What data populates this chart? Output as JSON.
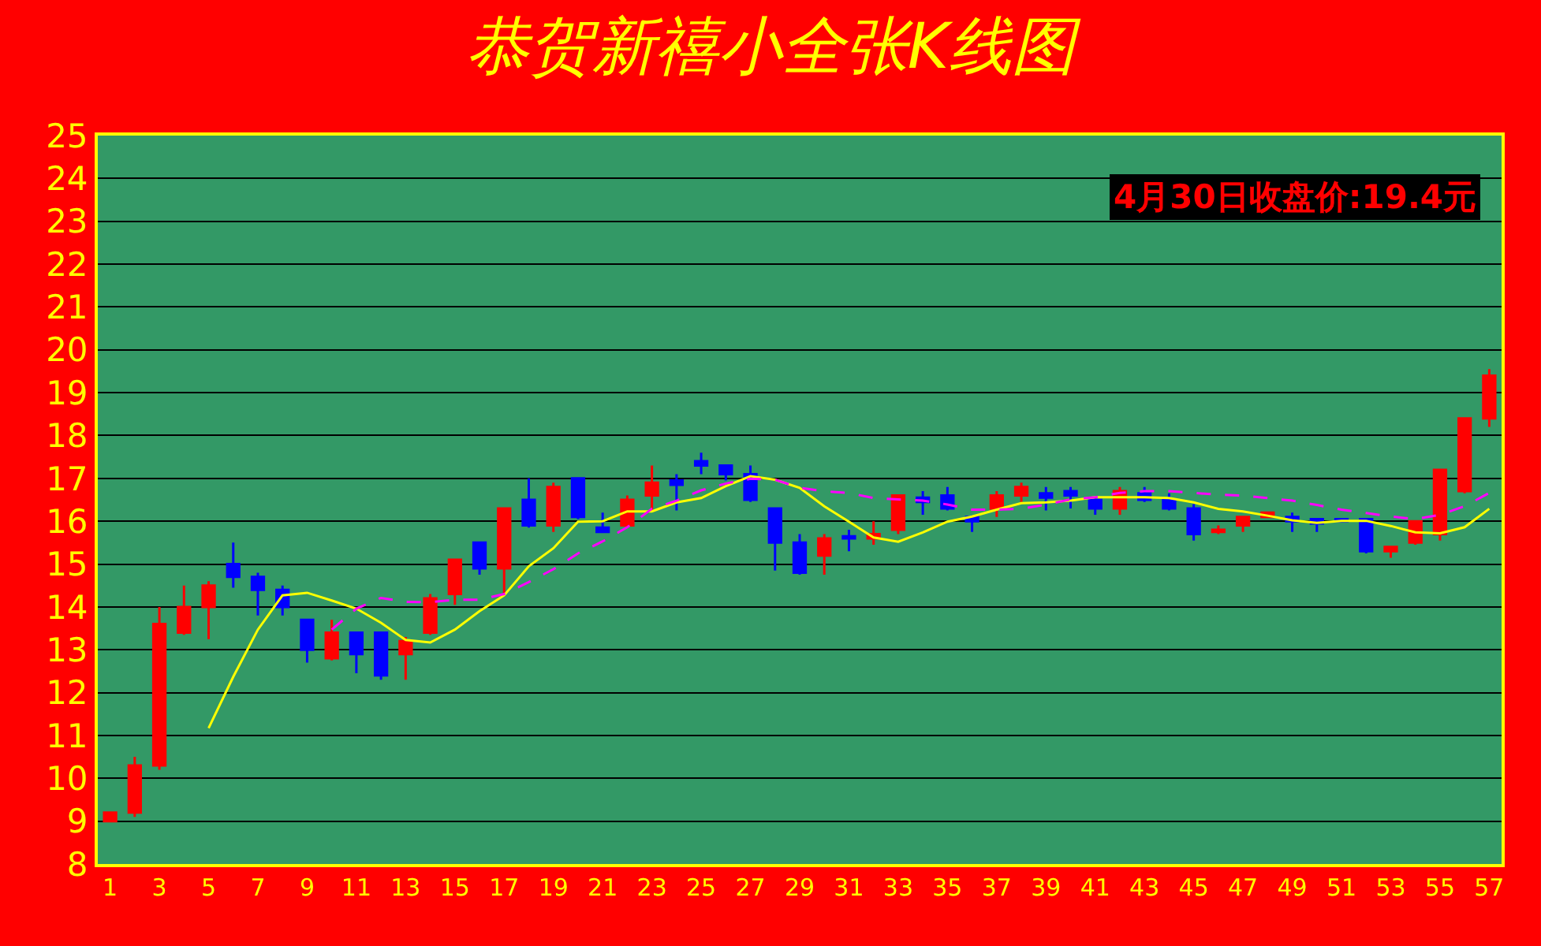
{
  "chart_data": {
    "type": "candlestick",
    "title": "恭贺新禧小全张K线图",
    "x": [
      1,
      2,
      3,
      4,
      5,
      6,
      7,
      8,
      9,
      10,
      11,
      12,
      13,
      14,
      15,
      16,
      17,
      18,
      19,
      20,
      21,
      22,
      23,
      24,
      25,
      26,
      27,
      28,
      29,
      30,
      31,
      32,
      33,
      34,
      35,
      36,
      37,
      38,
      39,
      40,
      41,
      42,
      43,
      44,
      45,
      46,
      47,
      48,
      49,
      50,
      51,
      52,
      53,
      54,
      55,
      56,
      57
    ],
    "ohlc": [
      [
        9.0,
        9.2,
        9.0,
        9.2
      ],
      [
        9.2,
        10.5,
        9.1,
        10.3
      ],
      [
        10.3,
        14.0,
        10.2,
        13.6
      ],
      [
        13.4,
        14.5,
        13.35,
        14.0
      ],
      [
        14.0,
        14.6,
        13.25,
        14.5
      ],
      [
        15.0,
        15.5,
        14.45,
        14.7
      ],
      [
        14.7,
        14.8,
        13.8,
        14.4
      ],
      [
        14.4,
        14.5,
        13.8,
        14.0
      ],
      [
        13.7,
        13.7,
        12.7,
        13.0
      ],
      [
        12.8,
        13.7,
        12.75,
        13.4
      ],
      [
        13.4,
        13.4,
        12.45,
        12.9
      ],
      [
        13.4,
        13.4,
        12.3,
        12.4
      ],
      [
        12.9,
        13.3,
        12.3,
        13.2
      ],
      [
        13.4,
        14.3,
        13.35,
        14.2
      ],
      [
        14.3,
        15.1,
        14.05,
        15.1
      ],
      [
        15.5,
        15.5,
        14.75,
        14.9
      ],
      [
        14.9,
        16.3,
        14.25,
        16.3
      ],
      [
        16.5,
        17.0,
        15.85,
        15.9
      ],
      [
        15.9,
        16.9,
        15.75,
        16.8
      ],
      [
        17.0,
        17.0,
        16.05,
        16.1
      ],
      [
        15.85,
        16.2,
        15.75,
        15.75
      ],
      [
        15.9,
        16.6,
        15.85,
        16.5
      ],
      [
        16.6,
        17.3,
        16.25,
        16.9
      ],
      [
        16.95,
        17.1,
        16.25,
        16.85
      ],
      [
        17.4,
        17.6,
        17.1,
        17.3
      ],
      [
        17.3,
        17.3,
        16.95,
        17.1
      ],
      [
        17.1,
        17.3,
        16.45,
        16.5
      ],
      [
        16.3,
        16.3,
        14.85,
        15.5
      ],
      [
        15.5,
        15.7,
        14.75,
        14.8
      ],
      [
        15.2,
        15.7,
        14.75,
        15.6
      ],
      [
        15.65,
        15.8,
        15.3,
        15.6
      ],
      [
        15.6,
        16.0,
        15.45,
        15.7
      ],
      [
        15.8,
        16.6,
        15.7,
        16.6
      ],
      [
        16.55,
        16.7,
        16.15,
        16.45
      ],
      [
        16.6,
        16.8,
        16.25,
        16.3
      ],
      [
        16.1,
        16.1,
        15.75,
        16.0
      ],
      [
        16.3,
        16.7,
        16.1,
        16.6
      ],
      [
        16.6,
        16.9,
        16.45,
        16.8
      ],
      [
        16.65,
        16.8,
        16.25,
        16.55
      ],
      [
        16.7,
        16.8,
        16.3,
        16.6
      ],
      [
        16.5,
        16.55,
        16.15,
        16.3
      ],
      [
        16.3,
        16.8,
        16.15,
        16.7
      ],
      [
        16.65,
        16.8,
        16.45,
        16.5
      ],
      [
        16.5,
        16.65,
        16.25,
        16.3
      ],
      [
        16.3,
        16.4,
        15.55,
        15.7
      ],
      [
        15.75,
        15.9,
        15.7,
        15.8
      ],
      [
        15.9,
        16.1,
        15.75,
        16.1
      ],
      [
        16.1,
        16.2,
        16.1,
        16.2
      ],
      [
        16.1,
        16.2,
        15.75,
        16.0
      ],
      [
        16.05,
        16.05,
        15.75,
        15.95
      ],
      [
        16.05,
        16.05,
        16.0,
        16.0
      ],
      [
        16.05,
        16.05,
        15.25,
        15.3
      ],
      [
        15.3,
        15.4,
        15.15,
        15.4
      ],
      [
        15.5,
        16.0,
        15.45,
        16.0
      ],
      [
        15.7,
        17.2,
        15.55,
        17.2
      ],
      [
        16.7,
        18.4,
        16.65,
        18.4
      ],
      [
        18.4,
        19.55,
        18.2,
        19.4
      ]
    ],
    "colors": [
      "#ff0000",
      "#ff0000",
      "#ff0000",
      "#ff0000",
      "#ff0000",
      "#0000ff",
      "#0000ff",
      "#0000ff",
      "#0000ff",
      "#ff0000",
      "#0000ff",
      "#0000ff",
      "#ff0000",
      "#ff0000",
      "#ff0000",
      "#0000ff",
      "#ff0000",
      "#0000ff",
      "#ff0000",
      "#0000ff",
      "#0000ff",
      "#ff0000",
      "#ff0000",
      "#0000ff",
      "#0000ff",
      "#0000ff",
      "#0000ff",
      "#0000ff",
      "#0000ff",
      "#ff0000",
      "#0000ff",
      "#ff0000",
      "#ff0000",
      "#0000ff",
      "#0000ff",
      "#0000ff",
      "#ff0000",
      "#ff0000",
      "#0000ff",
      "#0000ff",
      "#0000ff",
      "#ff0000",
      "#0000ff",
      "#0000ff",
      "#0000ff",
      "#ff0000",
      "#ff0000",
      "#ff0000",
      "#0000ff",
      "#0000ff",
      "#0000ff",
      "#0000ff",
      "#ff0000",
      "#ff0000",
      "#ff0000",
      "#ff0000",
      "#ff0000"
    ],
    "series": [
      {
        "type": "line",
        "color": "#ffff00",
        "line_style": "solid",
        "x": [
          5,
          6,
          7,
          8,
          9,
          10,
          11,
          12,
          13,
          14,
          15,
          16,
          17,
          18,
          19,
          20,
          21,
          22,
          23,
          24,
          25,
          26,
          27,
          28,
          29,
          30,
          31,
          32,
          33,
          34,
          35,
          36,
          37,
          38,
          39,
          40,
          41,
          42,
          43,
          44,
          45,
          46,
          47,
          48,
          49,
          50,
          51,
          52,
          53,
          54,
          55,
          56,
          57
        ],
        "values": [
          11.17,
          12.37,
          13.47,
          14.27,
          14.33,
          14.15,
          13.96,
          13.63,
          13.23,
          13.17,
          13.47,
          13.9,
          14.27,
          14.95,
          15.37,
          15.99,
          16.0,
          16.23,
          16.23,
          16.44,
          16.54,
          16.82,
          17.05,
          16.97,
          16.78,
          16.35,
          15.99,
          15.62,
          15.52,
          15.74,
          15.99,
          16.11,
          16.27,
          16.42,
          16.44,
          16.48,
          16.56,
          16.56,
          16.56,
          16.54,
          16.44,
          16.29,
          16.23,
          16.13,
          16.02,
          15.96,
          16.01,
          16.01,
          15.89,
          15.74,
          15.72,
          15.86,
          16.29
        ]
      },
      {
        "type": "line",
        "color": "#ff00ff",
        "line_style": "dashed",
        "x": [
          10,
          11,
          12,
          13,
          14,
          15,
          16,
          17,
          18,
          19,
          20,
          21,
          22,
          23,
          24,
          25,
          26,
          27,
          28,
          29,
          30,
          31,
          32,
          33,
          34,
          35,
          36,
          37,
          38,
          39,
          40,
          41,
          42,
          43,
          44,
          45,
          46,
          47,
          48,
          49,
          50,
          51,
          52,
          53,
          54,
          55,
          56,
          57
        ],
        "values": [
          13.47,
          13.96,
          14.21,
          14.12,
          14.11,
          14.17,
          14.17,
          14.3,
          14.58,
          14.88,
          15.25,
          15.53,
          15.86,
          16.29,
          16.48,
          16.72,
          16.88,
          16.99,
          16.97,
          16.78,
          16.7,
          16.66,
          16.54,
          16.51,
          16.48,
          16.39,
          16.27,
          16.27,
          16.29,
          16.39,
          16.51,
          16.56,
          16.66,
          16.7,
          16.7,
          16.66,
          16.62,
          16.6,
          16.54,
          16.48,
          16.38,
          16.27,
          16.19,
          16.11,
          16.05,
          16.15,
          16.35,
          16.66
        ]
      }
    ],
    "xlim": [
      0.5,
      57.5
    ],
    "xticks": [
      1,
      3,
      5,
      7,
      9,
      11,
      13,
      15,
      17,
      19,
      21,
      23,
      25,
      27,
      29,
      31,
      33,
      35,
      37,
      39,
      41,
      43,
      45,
      47,
      49,
      51,
      53,
      55,
      57
    ],
    "ylim": [
      8,
      25
    ],
    "yticks": [
      8,
      9,
      10,
      11,
      12,
      13,
      14,
      15,
      16,
      17,
      18,
      19,
      20,
      21,
      22,
      23,
      24,
      25
    ],
    "grid": "y",
    "annotations": [
      "4月30日收盘价:19.4元"
    ]
  }
}
